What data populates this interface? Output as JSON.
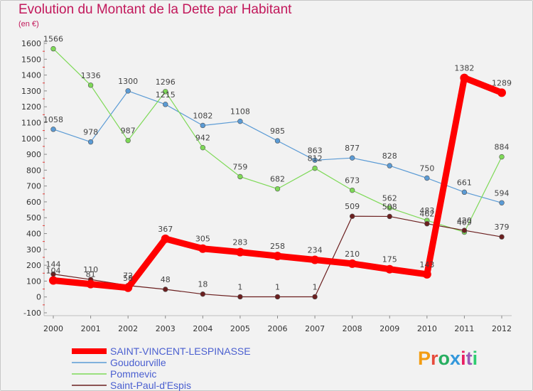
{
  "title": "Evolution du Montant de la Dette par Habitant",
  "subtitle": "(en €)",
  "logo": {
    "text": "Proxiti",
    "colors": [
      "#f39c12",
      "#e74c3c",
      "#27ae60",
      "#3498db",
      "#e91e63",
      "#9b59b6",
      "#2ecc71"
    ]
  },
  "chart_data": {
    "type": "line",
    "x": [
      "2000",
      "2001",
      "2002",
      "2003",
      "2004",
      "2005",
      "2006",
      "2007",
      "2008",
      "2009",
      "2010",
      "2011",
      "2012"
    ],
    "ylim": [
      -100,
      1600
    ],
    "yticks": [
      -100,
      0,
      100,
      200,
      300,
      400,
      500,
      600,
      700,
      800,
      900,
      1000,
      1100,
      1200,
      1300,
      1400,
      1500,
      1600
    ],
    "grid": false,
    "legend": "bottom-left",
    "series": [
      {
        "name": "SAINT-VINCENT-LESPINASSE",
        "color": "#ff0000",
        "values": [
          104,
          81,
          58,
          367,
          305,
          283,
          258,
          234,
          210,
          175,
          143,
          1382,
          1289
        ]
      },
      {
        "name": "Goudourville",
        "color": "#5b9bd5",
        "values": [
          1058,
          978,
          1300,
          1215,
          1082,
          1108,
          985,
          863,
          877,
          828,
          750,
          661,
          594
        ]
      },
      {
        "name": "Pommevic",
        "color": "#7ed957",
        "values": [
          1566,
          1336,
          987,
          1296,
          942,
          759,
          682,
          812,
          673,
          562,
          483,
          409,
          884
        ]
      },
      {
        "name": "Saint-Paul-d'Espis",
        "color": "#6b1f1f",
        "values": [
          144,
          110,
          72,
          48,
          18,
          1,
          1,
          1,
          509,
          508,
          462,
          420,
          379
        ]
      }
    ]
  }
}
